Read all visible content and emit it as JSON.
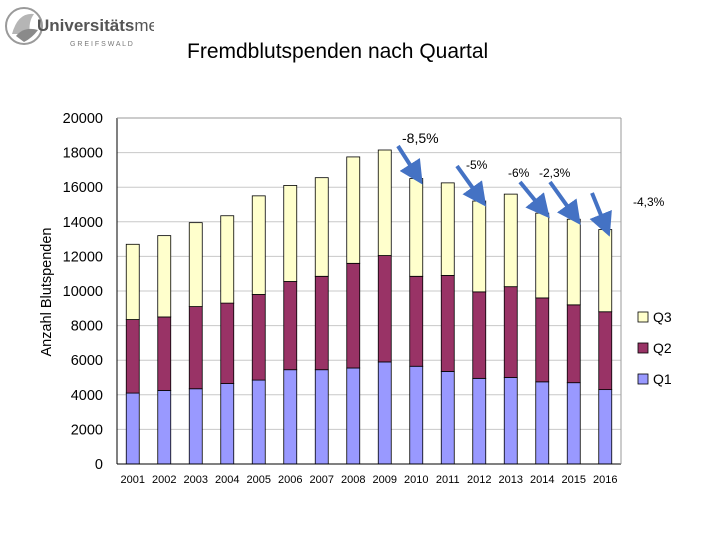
{
  "logo": {
    "name": "Universitätsmedizin",
    "part1": "Universitäts",
    "part2": "medizin",
    "city": "GREIFSWALD",
    "city_spaced": "G R E I F S W A L D"
  },
  "chart_data": {
    "type": "bar",
    "stacked": true,
    "title": "Fremdblutspenden nach Quartal",
    "xlabel": "",
    "ylabel": "Anzahl Blutspenden",
    "ylim": [
      0,
      20000
    ],
    "ytick_values": [
      0,
      2000,
      4000,
      6000,
      8000,
      10000,
      12000,
      14000,
      16000,
      18000,
      20000
    ],
    "ytick_labels": [
      "0",
      "2000",
      "4000",
      "6000",
      "8000",
      "10000",
      "12000",
      "14000",
      "16000",
      "18000",
      "20000"
    ],
    "grid": true,
    "legend_position": "right",
    "categories": [
      "2001",
      "2002",
      "2003",
      "2004",
      "2005",
      "2006",
      "2007",
      "2008",
      "2009",
      "2010",
      "2011",
      "2012",
      "2013",
      "2014",
      "2015",
      "2016"
    ],
    "series": [
      {
        "name": "Q1",
        "color": "#9999ff",
        "values": [
          4100,
          4250,
          4350,
          4650,
          4850,
          5450,
          5450,
          5550,
          5900,
          5650,
          5350,
          4950,
          5000,
          4750,
          4700,
          4300
        ]
      },
      {
        "name": "Q2",
        "color": "#993366",
        "values": [
          4250,
          4250,
          4750,
          4650,
          4950,
          5100,
          5400,
          6050,
          6150,
          5200,
          5550,
          5000,
          5250,
          4850,
          4500,
          4500
        ]
      },
      {
        "name": "Q3",
        "color": "#ffffcc",
        "values": [
          4350,
          4700,
          4850,
          5050,
          5700,
          5550,
          5700,
          6150,
          6100,
          5650,
          5350,
          5250,
          5350,
          4900,
          4950,
          4750
        ]
      }
    ],
    "totals": [
      12700,
      13200,
      13950,
      14350,
      15500,
      16100,
      16550,
      17750,
      18150,
      16500,
      16250,
      15200,
      15600,
      14500,
      14150,
      13550
    ],
    "annotations": [
      {
        "text": "-8,5%",
        "category": "2010"
      },
      {
        "text": "-5%",
        "category": "2012"
      },
      {
        "text": "-6%",
        "category": "2014"
      },
      {
        "text": "-2,3%",
        "category": "2015"
      },
      {
        "text": "-4,3%",
        "category": "2016"
      }
    ]
  }
}
